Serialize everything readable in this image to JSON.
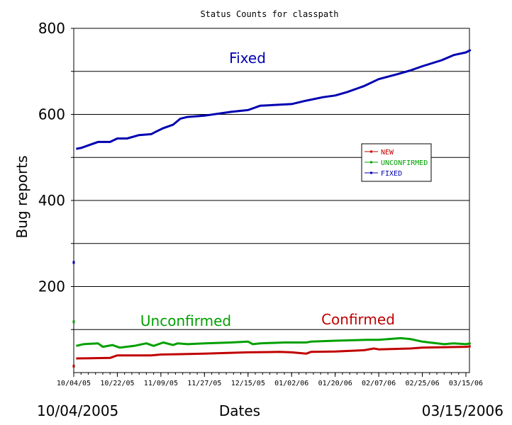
{
  "chart_data": {
    "type": "line",
    "title": "Status Counts for classpath",
    "ylabel": "Bug reports",
    "xlabel": "Dates",
    "start_label": "10/04/2005",
    "end_label": "03/15/2006",
    "ylim": [
      0,
      800
    ],
    "major_ticks": [
      "200",
      "400",
      "600",
      "800"
    ],
    "x_ticks": [
      "10/04/05",
      "10/22/05",
      "11/09/05",
      "11/27/05",
      "12/15/05",
      "01/02/06",
      "01/20/06",
      "02/07/06",
      "02/25/06",
      "03/15/06"
    ],
    "grid": true,
    "legend_position": "right",
    "series": [
      {
        "name": "NEW",
        "annotation": "Confirmed",
        "color": "#c00000",
        "outlier": [
          "10/04/05",
          15
        ],
        "points": [
          [
            "10/05/05",
            33
          ],
          [
            "10/19/05",
            34
          ],
          [
            "10/22/05",
            40
          ],
          [
            "11/05/05",
            40
          ],
          [
            "11/09/05",
            42
          ],
          [
            "11/27/05",
            44
          ],
          [
            "12/15/05",
            47
          ],
          [
            "12/28/05",
            48
          ],
          [
            "01/02/06",
            47
          ],
          [
            "01/08/06",
            44
          ],
          [
            "01/10/06",
            48
          ],
          [
            "01/20/06",
            49
          ],
          [
            "02/01/06",
            52
          ],
          [
            "02/05/06",
            56
          ],
          [
            "02/07/06",
            54
          ],
          [
            "02/20/06",
            56
          ],
          [
            "02/25/06",
            58
          ],
          [
            "03/15/06",
            60
          ],
          [
            "03/17/06",
            61
          ]
        ]
      },
      {
        "name": "UNCONFIRMED",
        "annotation": "Unconfirmed",
        "color": "#00a000",
        "outlier": [
          "10/04/05",
          118
        ],
        "points": [
          [
            "10/05/05",
            62
          ],
          [
            "10/08/05",
            66
          ],
          [
            "10/14/05",
            68
          ],
          [
            "10/16/05",
            60
          ],
          [
            "10/20/05",
            64
          ],
          [
            "10/23/05",
            58
          ],
          [
            "10/29/05",
            62
          ],
          [
            "11/03/05",
            68
          ],
          [
            "11/06/05",
            62
          ],
          [
            "11/10/05",
            70
          ],
          [
            "11/14/05",
            64
          ],
          [
            "11/16/05",
            68
          ],
          [
            "11/20/05",
            66
          ],
          [
            "11/27/05",
            68
          ],
          [
            "12/08/05",
            70
          ],
          [
            "12/15/05",
            72
          ],
          [
            "12/17/05",
            66
          ],
          [
            "12/20/05",
            68
          ],
          [
            "12/30/05",
            70
          ],
          [
            "01/08/06",
            70
          ],
          [
            "01/10/06",
            72
          ],
          [
            "01/20/06",
            74
          ],
          [
            "02/02/06",
            76
          ],
          [
            "02/07/06",
            76
          ],
          [
            "02/16/06",
            80
          ],
          [
            "02/20/06",
            78
          ],
          [
            "02/25/06",
            72
          ],
          [
            "02/28/06",
            70
          ],
          [
            "03/06/06",
            66
          ],
          [
            "03/10/06",
            68
          ],
          [
            "03/15/06",
            66
          ],
          [
            "03/17/06",
            68
          ]
        ]
      },
      {
        "name": "FIXED",
        "annotation": "Fixed",
        "color": "#0000b0",
        "outlier": [
          "10/04/05",
          256
        ],
        "points": [
          [
            "10/05/05",
            520
          ],
          [
            "10/07/05",
            522
          ],
          [
            "10/14/05",
            536
          ],
          [
            "10/19/05",
            536
          ],
          [
            "10/22/05",
            544
          ],
          [
            "10/26/05",
            544
          ],
          [
            "10/31/05",
            552
          ],
          [
            "11/05/05",
            554
          ],
          [
            "11/07/05",
            560
          ],
          [
            "11/10/05",
            568
          ],
          [
            "11/14/05",
            576
          ],
          [
            "11/17/05",
            590
          ],
          [
            "11/20/05",
            594
          ],
          [
            "11/27/05",
            597
          ],
          [
            "12/08/05",
            606
          ],
          [
            "12/15/05",
            610
          ],
          [
            "12/20/05",
            620
          ],
          [
            "01/02/06",
            624
          ],
          [
            "01/08/06",
            632
          ],
          [
            "01/15/06",
            640
          ],
          [
            "01/20/06",
            644
          ],
          [
            "01/25/06",
            652
          ],
          [
            "02/01/06",
            666
          ],
          [
            "02/07/06",
            682
          ],
          [
            "02/15/06",
            694
          ],
          [
            "02/20/06",
            702
          ],
          [
            "02/25/06",
            712
          ],
          [
            "03/05/06",
            726
          ],
          [
            "03/10/06",
            738
          ],
          [
            "03/15/06",
            744
          ],
          [
            "03/17/06",
            750
          ]
        ]
      }
    ]
  }
}
